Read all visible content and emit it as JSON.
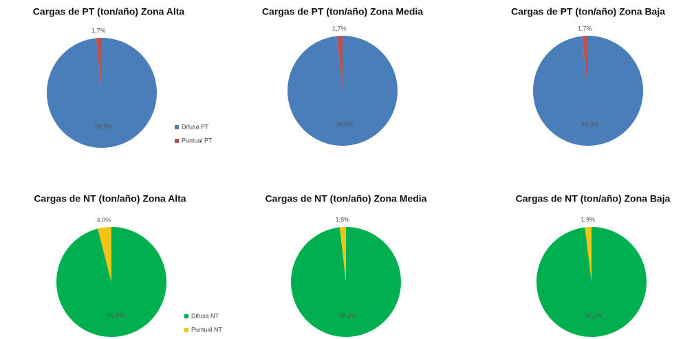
{
  "chart_data": [
    {
      "type": "pie",
      "title": "Cargas de PT (ton/año) Zona Alta",
      "categories": [
        "Difusa PT",
        "Puntual PT"
      ],
      "values": [
        98.8,
        1.7
      ],
      "value_labels": [
        "98,8%",
        "1,7%"
      ],
      "colors": [
        "#4a7ebb",
        "#c0504d"
      ],
      "legend": true
    },
    {
      "type": "pie",
      "title": "Cargas de PT (ton/año) Zona Media",
      "categories": [
        "Difusa PT",
        "Puntual PT"
      ],
      "values": [
        98.3,
        1.7
      ],
      "value_labels": [
        "98,3%",
        "1,7%"
      ],
      "colors": [
        "#4a7ebb",
        "#c0504d"
      ],
      "legend": false
    },
    {
      "type": "pie",
      "title": "Cargas de PT (ton/año) Zona Baja",
      "categories": [
        "Difusa PT",
        "Puntual PT"
      ],
      "values": [
        98.3,
        1.7
      ],
      "value_labels": [
        "98,3%",
        "1,7%"
      ],
      "colors": [
        "#4a7ebb",
        "#c0504d"
      ],
      "legend": false
    },
    {
      "type": "pie",
      "title": "Cargas de NT (ton/año) Zona Alta",
      "categories": [
        "Difusa NT",
        "Puntual NT"
      ],
      "values": [
        96.0,
        4.0
      ],
      "value_labels": [
        "96,0%",
        "4,0%"
      ],
      "colors": [
        "#00b050",
        "#f2c314"
      ],
      "legend": true
    },
    {
      "type": "pie",
      "title": "Cargas de NT (ton/año) Zona Media",
      "categories": [
        "Difusa NT",
        "Puntual NT"
      ],
      "values": [
        98.2,
        1.8
      ],
      "value_labels": [
        "98,2%",
        "1,8%"
      ],
      "colors": [
        "#00b050",
        "#f2c314"
      ],
      "legend": false
    },
    {
      "type": "pie",
      "title": "Cargas de NT (ton/año) Zona Baja",
      "categories": [
        "Difusa NT",
        "Puntual NT"
      ],
      "values": [
        98.1,
        1.9
      ],
      "value_labels": [
        "98,1%",
        "1,9%"
      ],
      "colors": [
        "#00b050",
        "#f2c314"
      ],
      "legend": false
    }
  ]
}
